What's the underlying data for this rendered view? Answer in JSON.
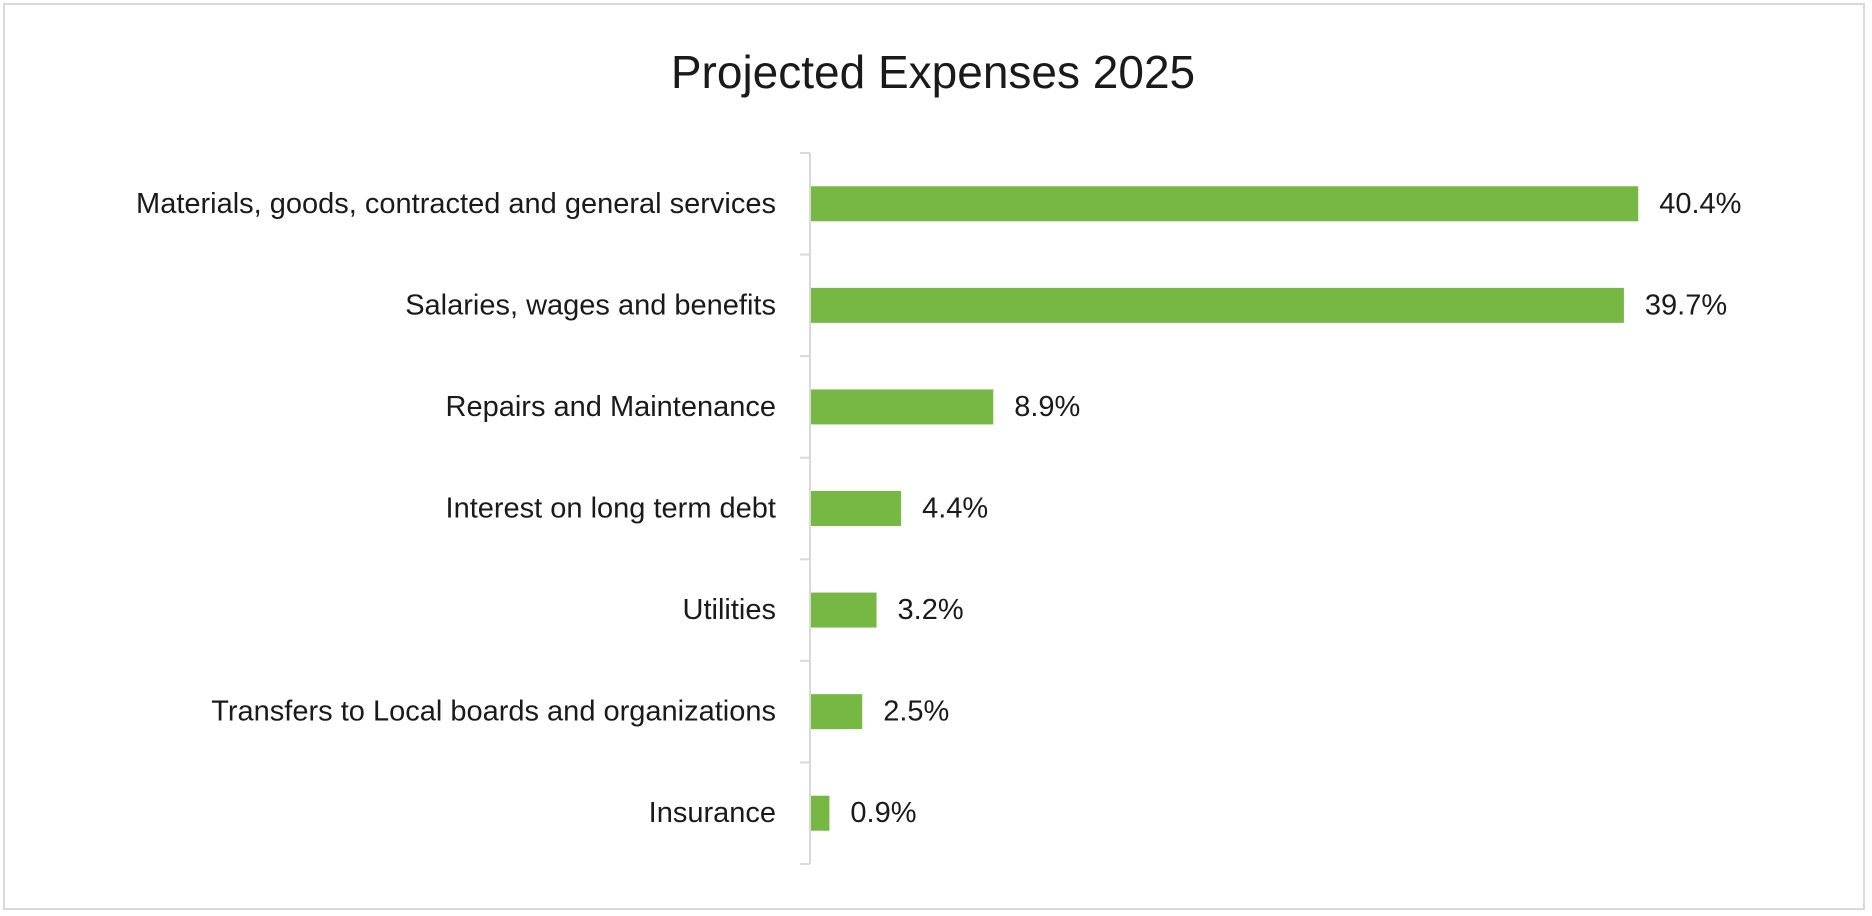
{
  "chart_data": {
    "type": "bar",
    "orientation": "horizontal",
    "title": "Projected Expenses 2025",
    "xlabel": "",
    "ylabel": "",
    "categories": [
      "Materials, goods, contracted and general services",
      "Salaries, wages and benefits",
      "Repairs and Maintenance",
      "Interest on long term debt",
      "Utilities",
      "Transfers to Local boards and organizations",
      "Insurance"
    ],
    "values": [
      40.4,
      39.7,
      8.9,
      4.4,
      3.2,
      2.5,
      0.9
    ],
    "data_labels": [
      "40.4%",
      "39.7%",
      "8.9%",
      "4.4%",
      "3.2%",
      "2.5%",
      "0.9%"
    ],
    "xlim": [
      0,
      42
    ],
    "value_unit": "%",
    "grid": false,
    "legend": "none",
    "bar_color": "#76b843",
    "axis_color": "#d9d9d9",
    "text_color": "#1a1a1a"
  }
}
